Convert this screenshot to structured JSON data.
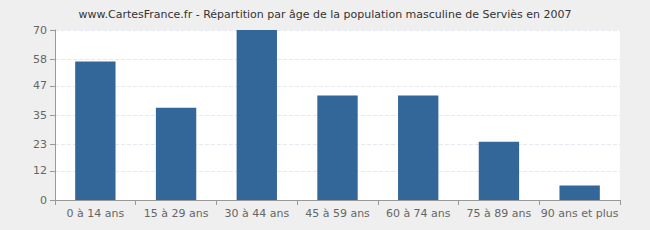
{
  "chart_data": {
    "type": "bar",
    "title": "www.CartesFrance.fr - Répartition par âge de la population masculine de Serviès en 2007",
    "categories": [
      "0 à 14 ans",
      "15 à 29 ans",
      "30 à 44 ans",
      "45 à 59 ans",
      "60 à 74 ans",
      "75 à 89 ans",
      "90 ans et plus"
    ],
    "values": [
      57,
      38,
      70,
      43,
      43,
      24,
      6
    ],
    "color": "#336699",
    "ylim": [
      0,
      70
    ],
    "yticks": [
      0,
      12,
      23,
      35,
      47,
      58,
      70
    ],
    "grid": true
  }
}
